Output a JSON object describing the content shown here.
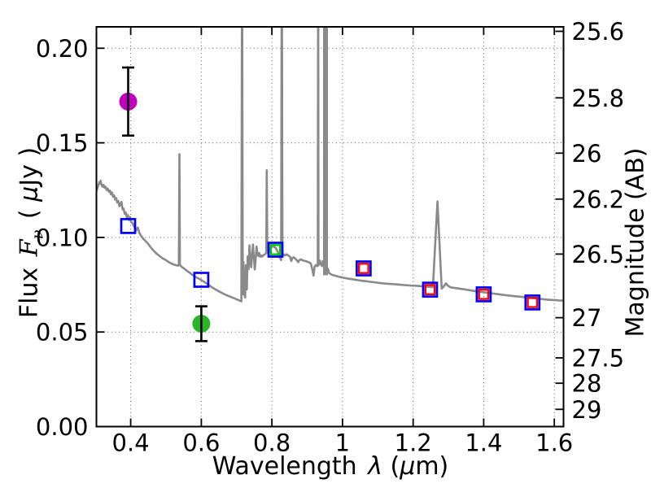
{
  "figure": {
    "background": "#ffffff"
  },
  "labels": {
    "x": {
      "word": "Wavelength",
      "lambda": "λ",
      "open": "(",
      "mu": "μ",
      "close": "m)"
    },
    "y_left": {
      "word": "Flux",
      "symbol": "F",
      "sub": "ν",
      "open": "( ",
      "mu": "μ",
      "close": "Jy )"
    },
    "y_right": "Magnitude (AB)"
  },
  "chart_data": {
    "type": "line",
    "title": "",
    "description": "Galaxy spectral energy distribution: grey model spectrum with emission lines, blue open squares (band-average photometry, some with red/green inner squares) and magenta/green circles with black error bars",
    "xlabel": "Wavelength λ (μm)",
    "ylabel": "Flux Fν ( μJy )",
    "ylabel_right": "Magnitude (AB)",
    "xlim": [
      0.303,
      1.626
    ],
    "ylim": [
      0.0,
      0.2113
    ],
    "ab_zeropoint_mag": 23.9,
    "grid": {
      "style": "dotted",
      "x_ticks": true,
      "y_left_ticks": true,
      "y_right_ticks": false
    },
    "legend": "none",
    "x_ticks": {
      "values": [
        0.4,
        0.6,
        0.8,
        1.0,
        1.2,
        1.4,
        1.6
      ],
      "labels": [
        "0.4",
        "0.6",
        "0.8",
        "1",
        "1.2",
        "1.4",
        "1.6"
      ]
    },
    "y_ticks_left": {
      "values": [
        0.0,
        0.05,
        0.1,
        0.15,
        0.2
      ],
      "labels": [
        "0.00",
        "0.05",
        "0.10",
        "0.15",
        "0.20"
      ]
    },
    "y_ticks_right": {
      "values": [
        25.6,
        25.8,
        26,
        26.2,
        26.5,
        27,
        27.5,
        28,
        29
      ],
      "labels": [
        "25.6",
        "25.8",
        "26",
        "26.2",
        "26.5",
        "27",
        "27.5",
        "28",
        "29"
      ]
    },
    "colors": {
      "spectrum": "#8a8a8a",
      "square_outer": "#0000ff",
      "square_inner_red": "#ff0000",
      "square_inner_green": "#00c800",
      "circle_magenta": "#bf00bf",
      "circle_green": "#2ab42a",
      "errorbar": "#000000",
      "frame": "#000000"
    },
    "spectrum": {
      "bands": [
        {
          "x0": 0.9448,
          "x1": 0.9586,
          "base": 0.08
        }
      ],
      "points": [
        [
          0.303,
          0.1245
        ],
        [
          0.306,
          0.1262
        ],
        [
          0.309,
          0.1278
        ],
        [
          0.311,
          0.1292
        ],
        [
          0.313,
          0.1285
        ],
        [
          0.315,
          0.13
        ],
        [
          0.317,
          0.128
        ],
        [
          0.32,
          0.1268
        ],
        [
          0.323,
          0.1278
        ],
        [
          0.326,
          0.1262
        ],
        [
          0.329,
          0.1268
        ],
        [
          0.332,
          0.125
        ],
        [
          0.335,
          0.1258
        ],
        [
          0.338,
          0.1242
        ],
        [
          0.341,
          0.1248
        ],
        [
          0.344,
          0.1228
        ],
        [
          0.347,
          0.1238
        ],
        [
          0.35,
          0.1215
        ],
        [
          0.353,
          0.1222
        ],
        [
          0.356,
          0.12
        ],
        [
          0.359,
          0.1208
        ],
        [
          0.362,
          0.1185
        ],
        [
          0.365,
          0.1192
        ],
        [
          0.368,
          0.1165
        ],
        [
          0.371,
          0.1175
        ],
        [
          0.374,
          0.1188
        ],
        [
          0.377,
          0.1148
        ],
        [
          0.38,
          0.1152
        ],
        [
          0.383,
          0.1125
        ],
        [
          0.386,
          0.1132
        ],
        [
          0.389,
          0.1105
        ],
        [
          0.392,
          0.1118
        ],
        [
          0.395,
          0.1092
        ],
        [
          0.398,
          0.1108
        ],
        [
          0.401,
          0.1082
        ],
        [
          0.404,
          0.1078
        ],
        [
          0.408,
          0.1065
        ],
        [
          0.412,
          0.1048
        ],
        [
          0.416,
          0.1038
        ],
        [
          0.42,
          0.1052
        ],
        [
          0.424,
          0.1028
        ],
        [
          0.428,
          0.1012
        ],
        [
          0.432,
          0.1002
        ],
        [
          0.436,
          0.0992
        ],
        [
          0.44,
          0.0985
        ],
        [
          0.445,
          0.0975
        ],
        [
          0.45,
          0.0965
        ],
        [
          0.455,
          0.0952
        ],
        [
          0.46,
          0.094
        ],
        [
          0.465,
          0.093
        ],
        [
          0.47,
          0.092
        ],
        [
          0.475,
          0.0912
        ],
        [
          0.48,
          0.0905
        ],
        [
          0.485,
          0.0897
        ],
        [
          0.49,
          0.089
        ],
        [
          0.495,
          0.0885
        ],
        [
          0.5,
          0.088
        ],
        [
          0.505,
          0.0873
        ],
        [
          0.51,
          0.0867
        ],
        [
          0.515,
          0.0862
        ],
        [
          0.52,
          0.0858
        ],
        [
          0.525,
          0.0855
        ],
        [
          0.53,
          0.0852
        ],
        [
          0.535,
          0.0851
        ],
        [
          0.5365,
          0.0858
        ],
        [
          0.538,
          0.144
        ],
        [
          0.5395,
          0.0855
        ],
        [
          0.544,
          0.0845
        ],
        [
          0.55,
          0.0837
        ],
        [
          0.556,
          0.0828
        ],
        [
          0.562,
          0.082
        ],
        [
          0.568,
          0.0812
        ],
        [
          0.574,
          0.0803
        ],
        [
          0.58,
          0.0795
        ],
        [
          0.586,
          0.0789
        ],
        [
          0.592,
          0.0783
        ],
        [
          0.598,
          0.0777
        ],
        [
          0.604,
          0.077
        ],
        [
          0.61,
          0.0763
        ],
        [
          0.616,
          0.0755
        ],
        [
          0.622,
          0.0747
        ],
        [
          0.628,
          0.0739
        ],
        [
          0.634,
          0.0732
        ],
        [
          0.64,
          0.0725
        ],
        [
          0.646,
          0.0719
        ],
        [
          0.652,
          0.0713
        ],
        [
          0.658,
          0.0707
        ],
        [
          0.664,
          0.0701
        ],
        [
          0.67,
          0.0696
        ],
        [
          0.676,
          0.0691
        ],
        [
          0.682,
          0.0687
        ],
        [
          0.688,
          0.0682
        ],
        [
          0.694,
          0.0678
        ],
        [
          0.7,
          0.0673
        ],
        [
          0.706,
          0.0668
        ],
        [
          0.711,
          0.0664
        ],
        [
          0.7135,
          0.0662
        ],
        [
          0.7155,
          0.26
        ],
        [
          0.7175,
          0.07
        ],
        [
          0.7195,
          0.087
        ],
        [
          0.7215,
          0.0705
        ],
        [
          0.724,
          0.0682
        ],
        [
          0.7265,
          0.0853
        ],
        [
          0.729,
          0.0725
        ],
        [
          0.7315,
          0.09
        ],
        [
          0.734,
          0.0832
        ],
        [
          0.7365,
          0.0958
        ],
        [
          0.739,
          0.088
        ],
        [
          0.7415,
          0.0842
        ],
        [
          0.744,
          0.0908
        ],
        [
          0.7465,
          0.0962
        ],
        [
          0.749,
          0.0895
        ],
        [
          0.7515,
          0.083
        ],
        [
          0.754,
          0.0885
        ],
        [
          0.7565,
          0.0952
        ],
        [
          0.759,
          0.0912
        ],
        [
          0.7615,
          0.0902
        ],
        [
          0.764,
          0.0918
        ],
        [
          0.7665,
          0.0898
        ],
        [
          0.769,
          0.0905
        ],
        [
          0.772,
          0.0898
        ],
        [
          0.775,
          0.0905
        ],
        [
          0.778,
          0.0908
        ],
        [
          0.781,
          0.0912
        ],
        [
          0.784,
          0.0918
        ],
        [
          0.7855,
          0.1355
        ],
        [
          0.787,
          0.092
        ],
        [
          0.79,
          0.0928
        ],
        [
          0.795,
          0.0942
        ],
        [
          0.8,
          0.095
        ],
        [
          0.805,
          0.0952
        ],
        [
          0.81,
          0.0945
        ],
        [
          0.815,
          0.093
        ],
        [
          0.82,
          0.0908
        ],
        [
          0.824,
          0.0888
        ],
        [
          0.8262,
          0.088
        ],
        [
          0.828,
          0.26
        ],
        [
          0.8298,
          0.0898
        ],
        [
          0.833,
          0.091
        ],
        [
          0.837,
          0.0904
        ],
        [
          0.841,
          0.0911
        ],
        [
          0.846,
          0.0905
        ],
        [
          0.851,
          0.0898
        ],
        [
          0.855,
          0.0875
        ],
        [
          0.858,
          0.0891
        ],
        [
          0.862,
          0.0895
        ],
        [
          0.866,
          0.0888
        ],
        [
          0.87,
          0.0881
        ],
        [
          0.8745,
          0.0869
        ],
        [
          0.878,
          0.088
        ],
        [
          0.882,
          0.0884
        ],
        [
          0.887,
          0.0879
        ],
        [
          0.892,
          0.0876
        ],
        [
          0.898,
          0.0873
        ],
        [
          0.904,
          0.0869
        ],
        [
          0.91,
          0.0863
        ],
        [
          0.915,
          0.0828
        ],
        [
          0.918,
          0.0798
        ],
        [
          0.921,
          0.0845
        ],
        [
          0.9245,
          0.0854
        ],
        [
          0.928,
          0.0848
        ],
        [
          0.93,
          0.085
        ],
        [
          0.931,
          0.26
        ],
        [
          0.932,
          0.0852
        ],
        [
          0.9355,
          0.0878
        ],
        [
          0.939,
          0.0858
        ],
        [
          0.942,
          0.0848
        ],
        [
          0.944,
          0.0875
        ],
        [
          0.959,
          0.0832
        ],
        [
          0.962,
          0.0812
        ],
        [
          0.966,
          0.0806
        ],
        [
          0.97,
          0.0803
        ],
        [
          0.976,
          0.0799
        ],
        [
          0.982,
          0.0796
        ],
        [
          0.99,
          0.0792
        ],
        [
          1.0,
          0.0788
        ],
        [
          1.01,
          0.0784
        ],
        [
          1.02,
          0.0781
        ],
        [
          1.03,
          0.0778
        ],
        [
          1.04,
          0.0775
        ],
        [
          1.05,
          0.0772
        ],
        [
          1.06,
          0.077
        ],
        [
          1.07,
          0.0768
        ],
        [
          1.08,
          0.0765
        ],
        [
          1.09,
          0.0763
        ],
        [
          1.1,
          0.076
        ],
        [
          1.115,
          0.0757
        ],
        [
          1.13,
          0.0755
        ],
        [
          1.15,
          0.0752
        ],
        [
          1.17,
          0.0749
        ],
        [
          1.19,
          0.0746
        ],
        [
          1.21,
          0.0744
        ],
        [
          1.23,
          0.0741
        ],
        [
          1.25,
          0.0738
        ],
        [
          1.256,
          0.0737
        ],
        [
          1.269,
          0.119
        ],
        [
          1.281,
          0.0729
        ],
        [
          1.287,
          0.0741
        ],
        [
          1.293,
          0.0757
        ],
        [
          1.299,
          0.0744
        ],
        [
          1.306,
          0.0736
        ],
        [
          1.32,
          0.0732
        ],
        [
          1.34,
          0.0727
        ],
        [
          1.36,
          0.0721
        ],
        [
          1.38,
          0.0715
        ],
        [
          1.4,
          0.071
        ],
        [
          1.42,
          0.0705
        ],
        [
          1.44,
          0.07
        ],
        [
          1.46,
          0.0695
        ],
        [
          1.48,
          0.0691
        ],
        [
          1.5,
          0.0687
        ],
        [
          1.52,
          0.0683
        ],
        [
          1.54,
          0.0679
        ],
        [
          1.56,
          0.0675
        ],
        [
          1.58,
          0.0671
        ],
        [
          1.6,
          0.0669
        ],
        [
          1.615,
          0.0667
        ],
        [
          1.626,
          0.0666
        ]
      ]
    },
    "photometry": {
      "squares": [
        {
          "x": 0.393,
          "y": 0.106,
          "inner": null
        },
        {
          "x": 0.6,
          "y": 0.0776,
          "inner": null
        },
        {
          "x": 0.81,
          "y": 0.0935,
          "inner": "#00c800"
        },
        {
          "x": 1.06,
          "y": 0.0836,
          "inner": "#ff0000"
        },
        {
          "x": 1.248,
          "y": 0.0724,
          "inner": "#ff0000"
        },
        {
          "x": 1.4,
          "y": 0.0699,
          "inner": "#ff0000"
        },
        {
          "x": 1.538,
          "y": 0.0656,
          "inner": "#ff0000"
        }
      ],
      "circles": [
        {
          "x": 0.393,
          "y": 0.1718,
          "yerr": 0.018,
          "color": "#bf00bf"
        },
        {
          "x": 0.6,
          "y": 0.0544,
          "yerr": 0.0092,
          "color": "#2ab42a"
        }
      ]
    }
  }
}
